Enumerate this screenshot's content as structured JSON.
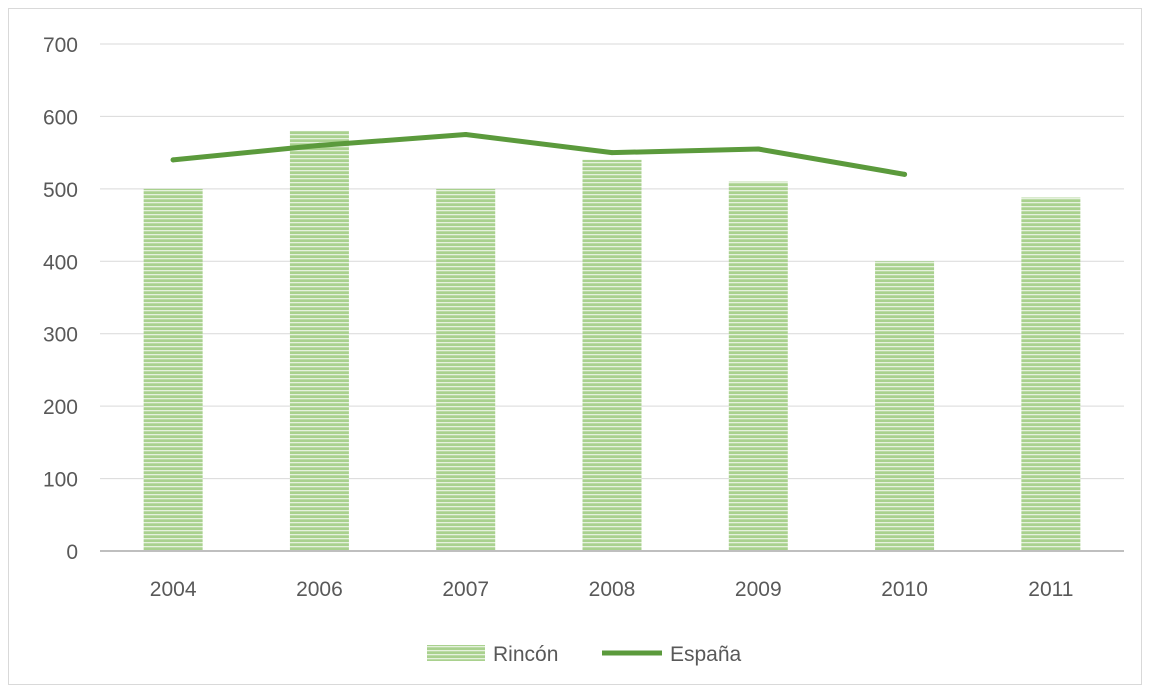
{
  "chart_data": {
    "type": "bar",
    "categories": [
      "2004",
      "2006",
      "2007",
      "2008",
      "2009",
      "2010",
      "2011"
    ],
    "series": [
      {
        "name": "Rincón",
        "type": "bar",
        "values": [
          500,
          580,
          500,
          540,
          510,
          400,
          488
        ]
      },
      {
        "name": "España",
        "type": "line",
        "values": [
          540,
          560,
          575,
          550,
          555,
          520,
          null
        ]
      }
    ],
    "ylim": [
      0,
      700
    ],
    "yticks": [
      "0",
      "100",
      "200",
      "300",
      "400",
      "500",
      "600",
      "700"
    ],
    "grid": true,
    "legend": "bottom",
    "colors": {
      "bar": "#a9d18e",
      "bar_stripe": "#ffffff",
      "line": "#5b9a3c",
      "axis": "#bfbfbf",
      "grid": "#d9d9d9"
    }
  }
}
